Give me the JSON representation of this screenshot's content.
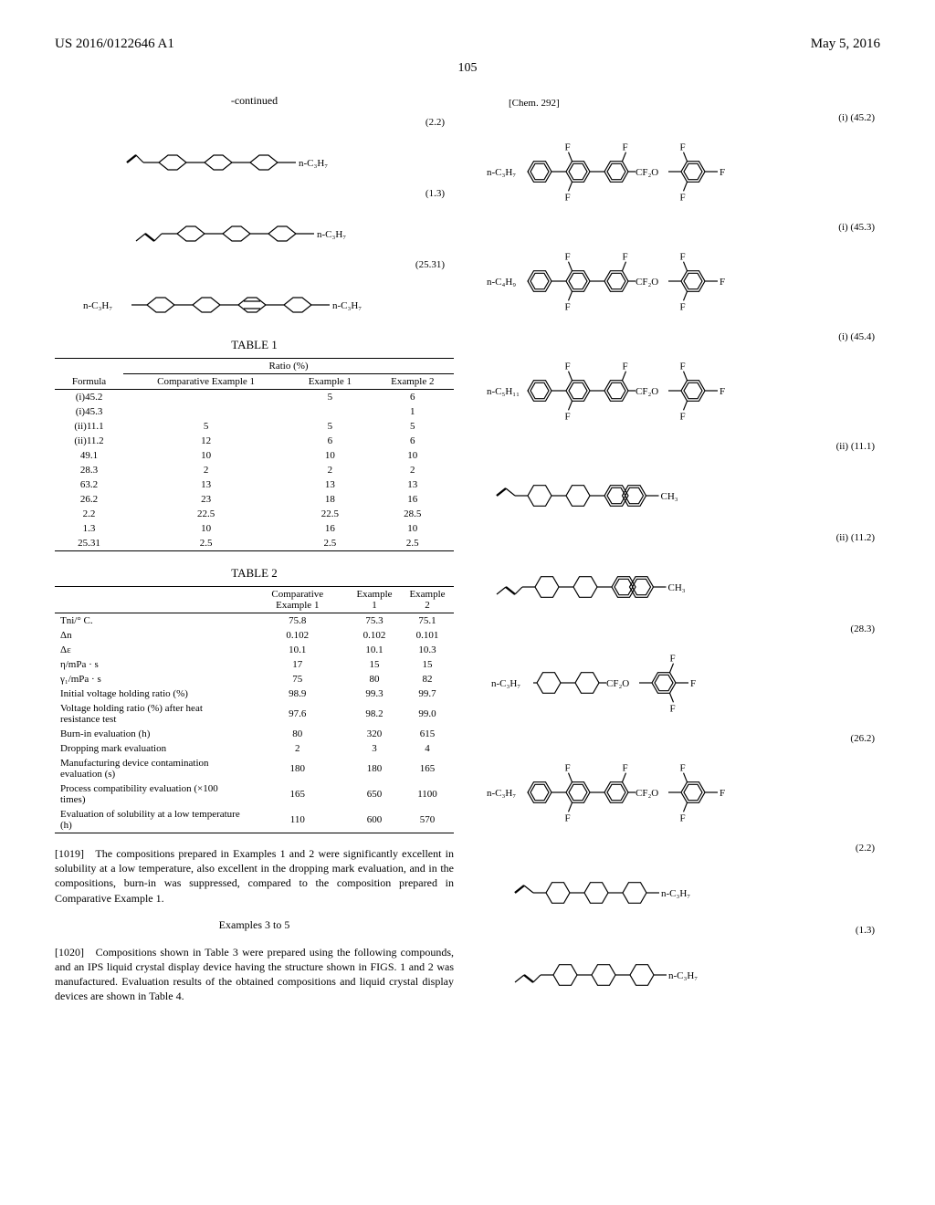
{
  "header": {
    "pub_number": "US 2016/0122646 A1",
    "pub_date": "May 5, 2016",
    "page_number": "105"
  },
  "left": {
    "continued_label": "-continued",
    "structures": [
      {
        "label": "(2.2)",
        "left_group": "",
        "right_group": "n-C₃H₇",
        "rings": 3,
        "vinyl_left": true
      },
      {
        "label": "(1.3)",
        "left_group": "",
        "right_group": "n-C₃H₇",
        "rings": 3,
        "vinyl_left_low": true
      },
      {
        "label": "(25.31)",
        "left_group": "n-C₃H₇",
        "right_group": "n-C₃H₇",
        "rings": 4,
        "aromatic_mid": true
      }
    ],
    "table1": {
      "title": "TABLE 1",
      "ratio_header": "Ratio (%)",
      "col_headers": [
        "Formula",
        "Comparative Example 1",
        "Example 1",
        "Example 2"
      ],
      "rows": [
        [
          "(i)45.2",
          "",
          "5",
          "6"
        ],
        [
          "(i)45.3",
          "",
          "",
          "1"
        ],
        [
          "(ii)11.1",
          "5",
          "5",
          "5"
        ],
        [
          "(ii)11.2",
          "12",
          "6",
          "6"
        ],
        [
          "49.1",
          "10",
          "10",
          "10"
        ],
        [
          "28.3",
          "2",
          "2",
          "2"
        ],
        [
          "63.2",
          "13",
          "13",
          "13"
        ],
        [
          "26.2",
          "23",
          "18",
          "16"
        ],
        [
          "2.2",
          "22.5",
          "22.5",
          "28.5"
        ],
        [
          "1.3",
          "10",
          "16",
          "10"
        ],
        [
          "25.31",
          "2.5",
          "2.5",
          "2.5"
        ]
      ]
    },
    "table2": {
      "title": "TABLE 2",
      "col_headers": [
        "",
        "Comparative Example 1",
        "Example 1",
        "Example 2"
      ],
      "rows": [
        [
          "Tni/° C.",
          "75.8",
          "75.3",
          "75.1"
        ],
        [
          "Δn",
          "0.102",
          "0.102",
          "0.101"
        ],
        [
          "Δε",
          "10.1",
          "10.1",
          "10.3"
        ],
        [
          "η/mPa · s",
          "17",
          "15",
          "15"
        ],
        [
          "γ₁/mPa · s",
          "75",
          "80",
          "82"
        ],
        [
          "Initial voltage holding ratio (%)",
          "98.9",
          "99.3",
          "99.7"
        ],
        [
          "Voltage holding ratio (%) after heat resistance test",
          "97.6",
          "98.2",
          "99.0"
        ],
        [
          "Burn-in evaluation (h)",
          "80",
          "320",
          "615"
        ],
        [
          "Dropping mark evaluation",
          "2",
          "3",
          "4"
        ],
        [
          "Manufacturing device contamination evaluation (s)",
          "180",
          "180",
          "165"
        ],
        [
          "Process compatibility evaluation (×100 times)",
          "165",
          "650",
          "1100"
        ],
        [
          "Evaluation of solubility at a low temperature (h)",
          "110",
          "600",
          "570"
        ]
      ]
    },
    "para1019_num": "[1019]",
    "para1019": "The compositions prepared in Examples 1 and 2 were significantly excellent in solubility at a low temperature, also excellent in the dropping mark evaluation, and in the compositions, burn-in was suppressed, compared to the composition prepared in Comparative Example 1.",
    "examples_title": "Examples 3 to 5",
    "para1020_num": "[1020]",
    "para1020": "Compositions shown in Table 3 were prepared using the following compounds, and an IPS liquid crystal display device having the structure shown in FIGS. 1 and 2 was manufactured. Evaluation results of the obtained compositions and liquid crystal display devices are shown in Table 4."
  },
  "right": {
    "chem_caption": "[Chem. 292]",
    "structures": [
      {
        "label": "(i) (45.2)",
        "left_group": "n-C₃H₇",
        "tail": "F",
        "fluoro": true,
        "bridge": "CF₂O"
      },
      {
        "label": "(i) (45.3)",
        "left_group": "n-C₄H₉",
        "tail": "F",
        "fluoro": true,
        "bridge": "CF₂O"
      },
      {
        "label": "(i) (45.4)",
        "left_group": "n-C₅H₁₁",
        "tail": "F",
        "fluoro": true,
        "bridge": "CF₂O"
      },
      {
        "label": "(ii) (11.1)",
        "left_group": "",
        "tail": "CH₃",
        "vinyl_left": true,
        "three_ring_np": true
      },
      {
        "label": "(ii) (11.2)",
        "left_group": "",
        "tail": "CH₃",
        "vinyl_left_low": true,
        "three_ring_np": true
      },
      {
        "label": "(28.3)",
        "left_group": "n-C₃H₇",
        "tail": "F",
        "bridge": "CF₂O",
        "mono_f": true
      },
      {
        "label": "(26.2)",
        "left_group": "n-C₃H₇",
        "tail": "F",
        "fluoro": true,
        "bridge": "CF₂O"
      },
      {
        "label": "(2.2)",
        "left_group": "",
        "tail": "n-C₃H₇",
        "vinyl_left": true,
        "simple3": true
      },
      {
        "label": "(1.3)",
        "left_group": "",
        "tail": "n-C₃H₇",
        "vinyl_left_low": true,
        "simple3": true
      }
    ]
  },
  "colors": {
    "text": "#000000",
    "bg": "#ffffff",
    "line": "#000000"
  }
}
